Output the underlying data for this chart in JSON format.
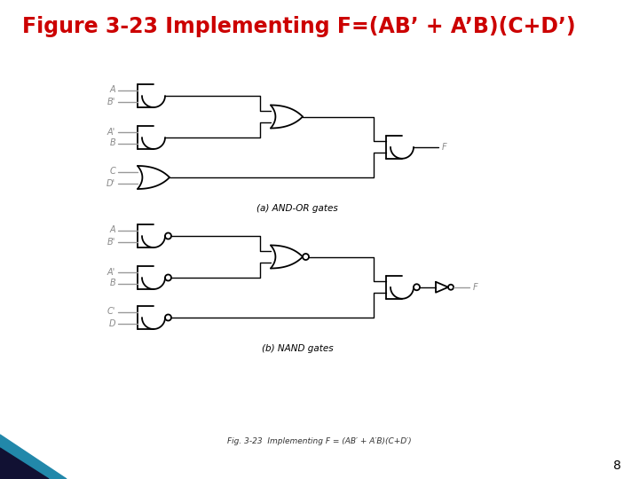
{
  "title": "Figure 3-23 Implementing F=(AB’ + A’B)(C+D’)",
  "title_color": "#cc0000",
  "title_fontsize": 17,
  "background_color": "#ffffff",
  "caption_a": "(a) AND-OR gates",
  "caption_b": "(b) NAND gates",
  "fig_caption": "Fig. 3-23  Implementing F = (AB′ + A′B)(C+D′)",
  "page_number": "8",
  "gate_color": "#000000",
  "wire_color": "#999999",
  "label_color": "#888888"
}
